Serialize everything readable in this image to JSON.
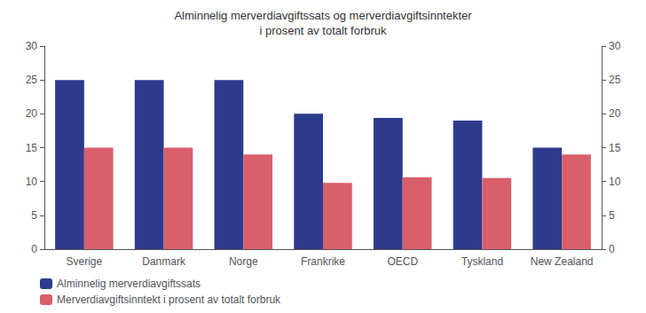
{
  "chart_data": {
    "type": "bar",
    "title": "Alminnelig merverdiavgiftssats og merverdiavgiftsinntekter\ni prosent av totalt forbruk",
    "categories": [
      "Sverige",
      "Danmark",
      "Norge",
      "Frankrike",
      "OECD",
      "Tyskland",
      "New Zealand"
    ],
    "series": [
      {
        "name": "Alminnelig merverdiavgiftssats",
        "color": "#2E3B8C",
        "values": [
          25,
          25,
          25,
          20,
          19.4,
          19,
          15
        ]
      },
      {
        "name": "Merverdiavgiftsinntekt i prosent av totalt forbruk",
        "color": "#D95F6A",
        "values": [
          15,
          15,
          14,
          9.8,
          10.6,
          10.5,
          14
        ]
      }
    ],
    "ylim": [
      0,
      30
    ],
    "yticks": [
      0,
      5,
      10,
      15,
      20,
      25,
      30
    ],
    "y2lim": [
      0,
      30
    ],
    "y2ticks": [
      0,
      5,
      10,
      15,
      20,
      25,
      30
    ],
    "grid": false,
    "legend": "lower left"
  }
}
